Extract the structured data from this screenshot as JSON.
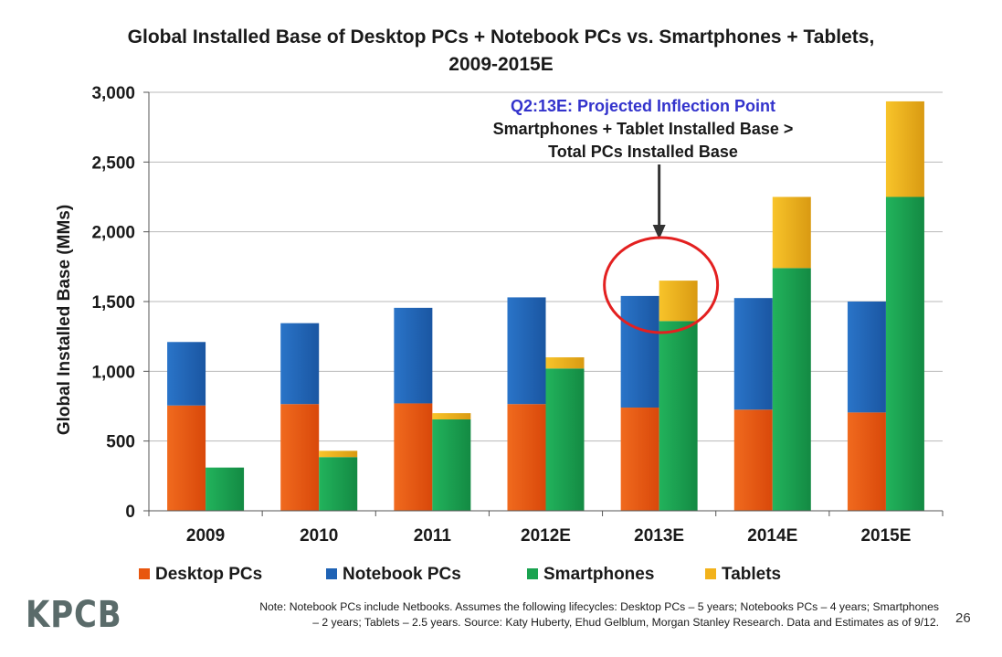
{
  "chart_data": {
    "type": "bar",
    "title_lines": [
      "Global Installed Base of Desktop PCs + Notebook PCs vs. Smartphones + Tablets,",
      "2009-2015E"
    ],
    "ylabel": "Global Installed Base (MMs)",
    "xlabel": "",
    "ylim": [
      0,
      3000
    ],
    "yticks": [
      0,
      500,
      1000,
      1500,
      2000,
      2500,
      3000
    ],
    "ytick_labels": [
      "0",
      "500",
      "1,000",
      "1,500",
      "2,000",
      "2,500",
      "3,000"
    ],
    "grid": true,
    "categories": [
      "2009",
      "2010",
      "2011",
      "2012E",
      "2013E",
      "2014E",
      "2015E"
    ],
    "stacks": [
      {
        "name": "PCs",
        "series": [
          {
            "name": "Desktop PCs",
            "color": "#e8560e",
            "values": [
              755,
              765,
              770,
              765,
              740,
              725,
              705
            ]
          },
          {
            "name": "Notebook PCs",
            "color": "#1f63b5",
            "values": [
              455,
              580,
              685,
              765,
              800,
              800,
              795
            ]
          }
        ]
      },
      {
        "name": "Smartphones + Tablets",
        "series": [
          {
            "name": "Smartphones",
            "color": "#1aa350",
            "values": [
              310,
              385,
              655,
              1020,
              1360,
              1740,
              2250
            ]
          },
          {
            "name": "Tablets",
            "color": "#f2b21b",
            "values": [
              0,
              45,
              45,
              80,
              290,
              510,
              685
            ]
          }
        ]
      }
    ],
    "legend_placement": "bottom",
    "annotation": {
      "category": "2013E",
      "line1": "Q2:13E: Projected Inflection Point",
      "line2": "Smartphones + Tablet Installed Base >",
      "line3": "Total PCs Installed Base",
      "line1_color": "#3333cc",
      "circle_color": "#e32020"
    }
  },
  "legend": [
    {
      "label": "Desktop PCs",
      "color": "#e8560e"
    },
    {
      "label": "Notebook PCs",
      "color": "#1f63b5"
    },
    {
      "label": "Smartphones",
      "color": "#1aa350"
    },
    {
      "label": "Tablets",
      "color": "#f2b21b"
    }
  ],
  "footer": {
    "logo": "KPCB",
    "note_line1": "Note: Notebook PCs include Netbooks. Assumes the following lifecycles: Desktop PCs – 5 years; Notebooks PCs – 4 years; Smartphones",
    "note_line2": "– 2 years; Tablets – 2.5 years. Source: Katy Huberty, Ehud Gelblum, Morgan Stanley Research. Data and Estimates as of 9/12.",
    "page_number": "26"
  }
}
